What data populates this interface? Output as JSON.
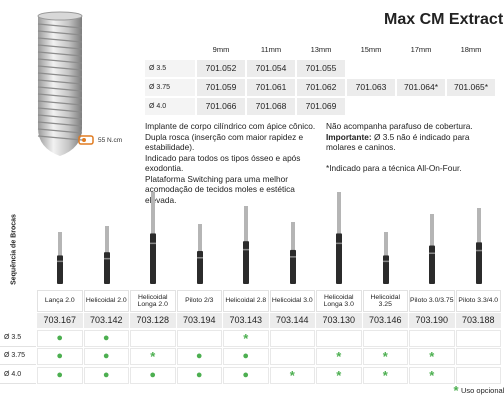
{
  "header": {
    "title": "Max CM Extract"
  },
  "implant_table": {
    "columns": [
      "9mm",
      "11mm",
      "13mm",
      "15mm",
      "17mm",
      "18mm"
    ],
    "rows": [
      {
        "label": "Ø 3.5",
        "cells": [
          "701.052",
          "701.054",
          "701.055",
          null,
          null,
          null
        ]
      },
      {
        "label": "Ø 3.75",
        "cells": [
          "701.059",
          "701.061",
          "701.062",
          "701.063",
          "701.064*",
          "701.065*"
        ]
      },
      {
        "label": "Ø 4.0",
        "cells": [
          "701.066",
          "701.068",
          "701.069",
          null,
          null,
          null
        ]
      }
    ]
  },
  "torque": "55 N.cm",
  "description": [
    "Implante de corpo cilíndrico com ápice cônico.",
    "Dupla rosca (inserção com maior rapidez e estabilidade).",
    "Indicado para todos os tipos ósseo e após exodontia.",
    "Plataforma Switching para uma melhor acomodação de tecidos moles e estética elevada."
  ],
  "notes": {
    "cover_screw": "Não acompanha parafuso de cobertura.",
    "important_label": "Importante:",
    "important_text": "Ø 3.5 não é indicado para molares e caninos.",
    "all_on_four": "*Indicado para a técnica All-On-Four."
  },
  "drill_sequence": {
    "label": "Sequência de Brocas",
    "drills": [
      {
        "name": "Lança 2.0",
        "code": "703.167"
      },
      {
        "name": "Helicoidal 2.0",
        "code": "703.142"
      },
      {
        "name": "Helicoidal Longa 2.0",
        "code": "703.128"
      },
      {
        "name": "Piloto 2/3",
        "code": "703.194"
      },
      {
        "name": "Helicoidal 2.8",
        "code": "703.143"
      },
      {
        "name": "Helicoidal 3.0",
        "code": "703.144"
      },
      {
        "name": "Helicoidal Longa 3.0",
        "code": "703.130"
      },
      {
        "name": "Helicoidal 3.25",
        "code": "703.146"
      },
      {
        "name": "Piloto 3.0/3.75",
        "code": "703.190"
      },
      {
        "name": "Piloto 3.3/4.0",
        "code": "703.188"
      }
    ],
    "usage": [
      {
        "label": "Ø 3.5",
        "cells": [
          "●",
          "●",
          null,
          null,
          "*",
          null,
          null,
          null,
          null,
          null
        ]
      },
      {
        "label": "Ø 3.75",
        "cells": [
          "●",
          "●",
          "*",
          "●",
          "●",
          null,
          "*",
          "*",
          "*",
          null
        ]
      },
      {
        "label": "Ø 4.0",
        "cells": [
          "●",
          "●",
          "●",
          "●",
          "●",
          "*",
          "*",
          "*",
          "*",
          null
        ]
      }
    ],
    "legend": {
      "symbol": "*",
      "text": "Uso opcional"
    }
  }
}
